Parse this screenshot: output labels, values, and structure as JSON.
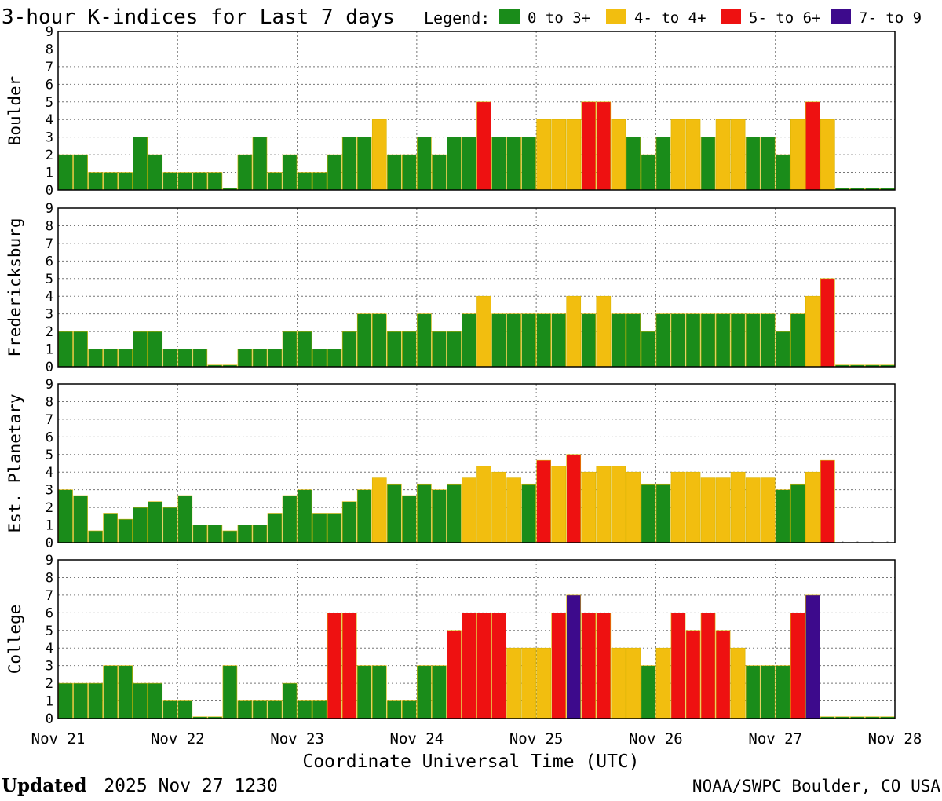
{
  "header": {
    "title": "3-hour K-indices for Last 7 days",
    "legend_label": "Legend:"
  },
  "legend": [
    {
      "label": "0 to 3+",
      "color": "#1a8c1a"
    },
    {
      "label": "4- to 4+",
      "color": "#f2be0f"
    },
    {
      "label": "5- to 6+",
      "color": "#ee1111"
    },
    {
      "label": "7- to 9",
      "color": "#3d0a8c"
    }
  ],
  "footer": {
    "updated_label": "Updated",
    "updated_value": "2025 Nov 27 1230",
    "source": "NOAA/SWPC Boulder, CO USA"
  },
  "chart_data": {
    "type": "bar",
    "xlabel": "Coordinate Universal Time (UTC)",
    "x_tick_labels": [
      "Nov 21",
      "Nov 22",
      "Nov 23",
      "Nov 24",
      "Nov 25",
      "Nov 26",
      "Nov 27",
      "Nov 28"
    ],
    "y_tick_labels": [
      "0",
      "1",
      "2",
      "3",
      "4",
      "5",
      "6",
      "7",
      "8",
      "9"
    ],
    "ylim": [
      0,
      9
    ],
    "grid": true,
    "bins_per_day": 8,
    "color_thresholds": {
      "green_below": 3.67,
      "yellow_below": 4.67,
      "red_below": 6.67
    },
    "panels": [
      {
        "name": "Boulder",
        "values": [
          2,
          2,
          1,
          1,
          1,
          3,
          2,
          1,
          1,
          1,
          1,
          0.1,
          2,
          3,
          1,
          2,
          1,
          1,
          2,
          3,
          3,
          4,
          2,
          2,
          3,
          2,
          3,
          3,
          5,
          3,
          3,
          3,
          4,
          4,
          4,
          5,
          5,
          4,
          3,
          2,
          3,
          4,
          4,
          3,
          4,
          4,
          3,
          3,
          2,
          4,
          5,
          4,
          0.1,
          0.1,
          0.1,
          0.1
        ]
      },
      {
        "name": "Fredericksburg",
        "values": [
          2,
          2,
          1,
          1,
          1,
          2,
          2,
          1,
          1,
          1,
          0.1,
          0.1,
          1,
          1,
          1,
          2,
          2,
          1,
          1,
          2,
          3,
          3,
          2,
          2,
          3,
          2,
          2,
          3,
          4,
          3,
          3,
          3,
          3,
          3,
          4,
          3,
          4,
          3,
          3,
          2,
          3,
          3,
          3,
          3,
          3,
          3,
          3,
          3,
          2,
          3,
          4,
          5,
          0.1,
          0.1,
          0.1,
          0.1
        ]
      },
      {
        "name": "Est. Planetary",
        "values": [
          3,
          2.67,
          0.67,
          1.67,
          1.33,
          2,
          2.33,
          2,
          2.67,
          1,
          1,
          0.67,
          1,
          1,
          1.67,
          2.67,
          3,
          1.67,
          1.67,
          2.33,
          3,
          3.67,
          3.33,
          2.67,
          3.33,
          3,
          3.33,
          3.67,
          4.33,
          4,
          3.67,
          3.33,
          4.67,
          4.33,
          5,
          4,
          4.33,
          4.33,
          4,
          3.33,
          3.33,
          4,
          4,
          3.67,
          3.67,
          4,
          3.67,
          3.67,
          3,
          3.33,
          4,
          4.67,
          0,
          0,
          0,
          0
        ]
      },
      {
        "name": "College",
        "values": [
          2,
          2,
          2,
          3,
          3,
          2,
          2,
          1,
          1,
          0.1,
          0.1,
          3,
          1,
          1,
          1,
          2,
          1,
          1,
          6,
          6,
          3,
          3,
          1,
          1,
          3,
          3,
          5,
          6,
          6,
          6,
          4,
          4,
          4,
          6,
          7,
          6,
          6,
          4,
          4,
          3,
          4,
          6,
          5,
          6,
          5,
          4,
          3,
          3,
          3,
          6,
          7,
          0.1,
          0.1,
          0.1,
          0.1,
          0.1
        ]
      }
    ]
  }
}
